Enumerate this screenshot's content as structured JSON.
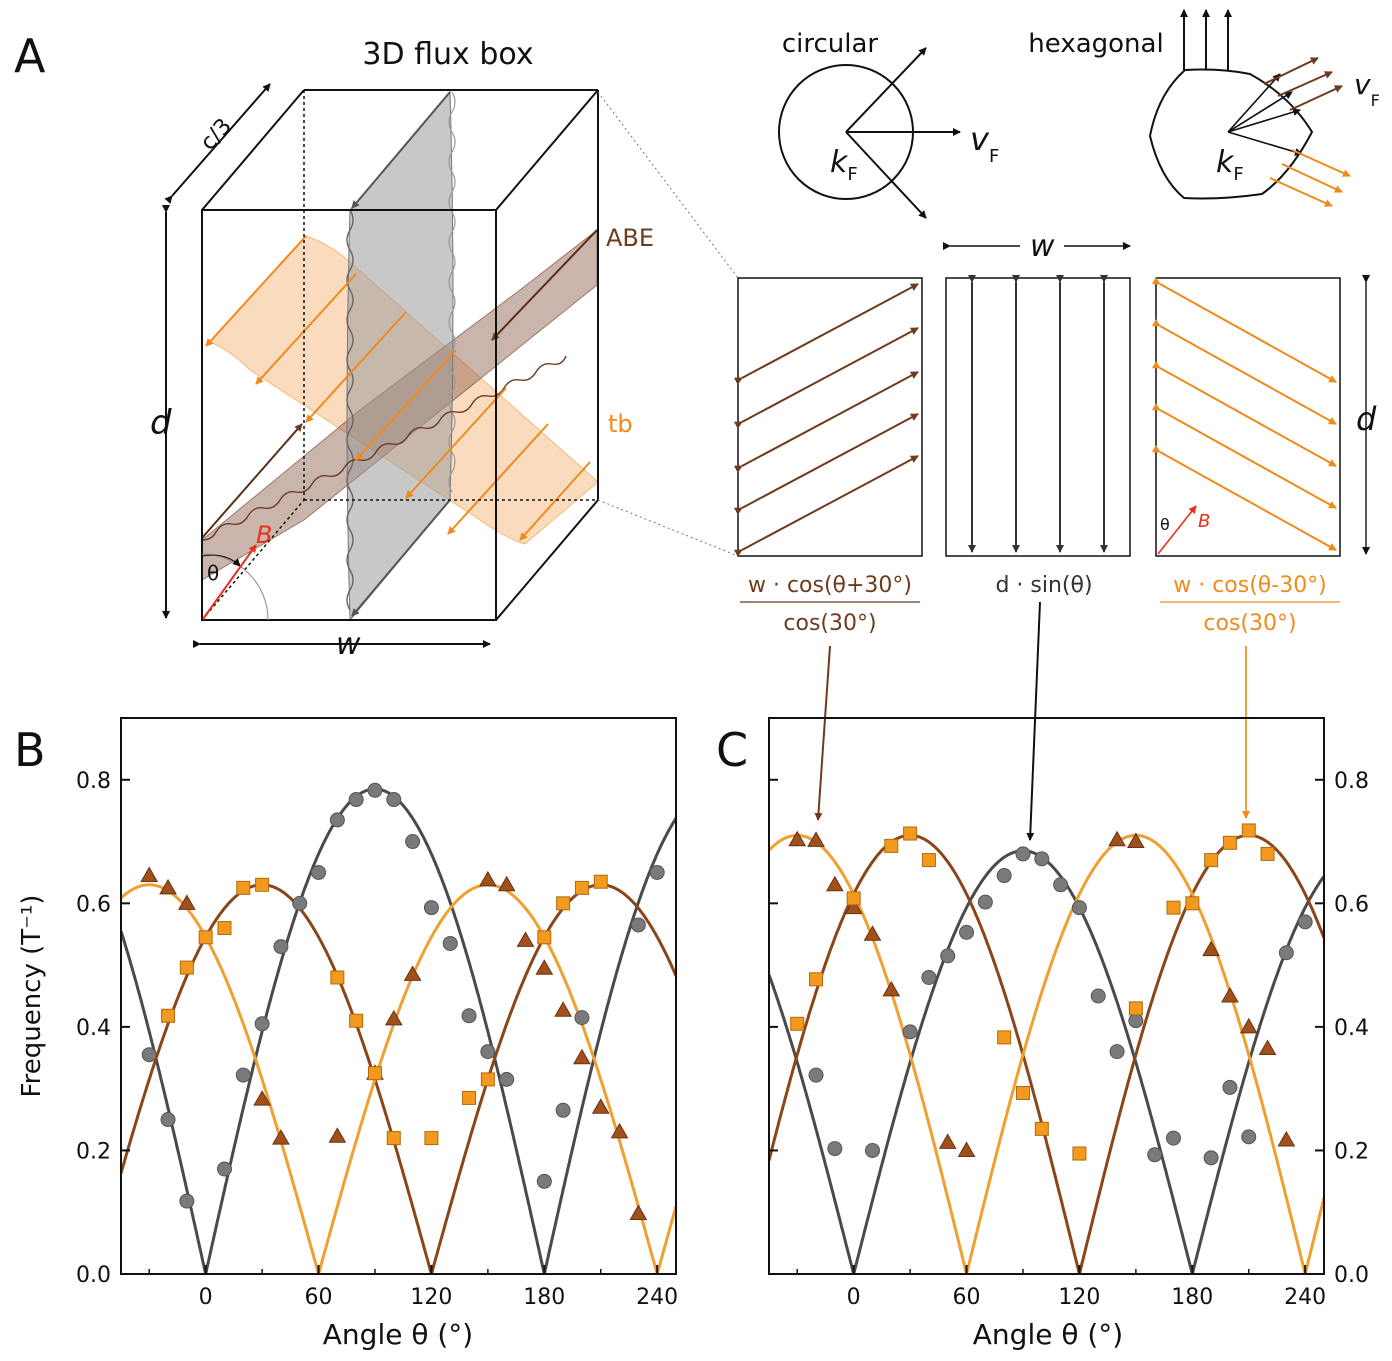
{
  "panels": {
    "a": "A",
    "b": "B",
    "c": "C"
  },
  "panel_a": {
    "title": "3D flux box",
    "label_c3": "c/3",
    "label_d": "d",
    "label_w": "w",
    "label_abe": "ABE",
    "label_tb": "tb",
    "label_B": "B",
    "label_theta": "θ",
    "circular_title": "circular",
    "hexagonal_title": "hexagonal",
    "kF": "k",
    "kF_sub": "F",
    "vF": "v",
    "vF_sub": "F",
    "formula_left_num": "w · cos(θ+30°)",
    "formula_left_den": "cos(30°)",
    "formula_mid": "d · sin(θ)",
    "formula_right_num": "w · cos(θ-30°)",
    "formula_right_den": "cos(30°)",
    "colors": {
      "abe": "#6e3b1f",
      "tb": "#f08a1c",
      "gray": "#4d4d4d",
      "red": "#e8321e"
    }
  },
  "chart_data": [
    {
      "type": "scatter",
      "panel": "B",
      "xlabel": "Angle θ (°)",
      "ylabel": "Frequency (T⁻¹)",
      "xlim": [
        -45,
        250
      ],
      "ylim": [
        0,
        0.9
      ],
      "xticks": [
        0,
        60,
        120,
        180,
        240
      ],
      "yticks": [
        0.0,
        0.2,
        0.4,
        0.6,
        0.8
      ],
      "series": [
        {
          "marker": "circle",
          "color": "#7a7a7a",
          "fit": {
            "kind": "abs_sin",
            "amplitude": 0.785,
            "phase": 0
          },
          "points": [
            [
              -30,
              0.355
            ],
            [
              -20,
              0.25
            ],
            [
              -10,
              0.118
            ],
            [
              10,
              0.17
            ],
            [
              20,
              0.322
            ],
            [
              30,
              0.405
            ],
            [
              40,
              0.53
            ],
            [
              50,
              0.6
            ],
            [
              60,
              0.65
            ],
            [
              70,
              0.735
            ],
            [
              80,
              0.768
            ],
            [
              90,
              0.783
            ],
            [
              100,
              0.768
            ],
            [
              110,
              0.7
            ],
            [
              120,
              0.593
            ],
            [
              130,
              0.535
            ],
            [
              140,
              0.418
            ],
            [
              150,
              0.36
            ],
            [
              160,
              0.315
            ],
            [
              180,
              0.15
            ],
            [
              190,
              0.265
            ],
            [
              200,
              0.415
            ],
            [
              230,
              0.565
            ],
            [
              240,
              0.65
            ]
          ]
        },
        {
          "marker": "triangle",
          "color": "#a0501a",
          "fit": {
            "kind": "cos",
            "amplitude": 0.63,
            "phase": 30
          },
          "points": [
            [
              -30,
              0.645
            ],
            [
              -20,
              0.625
            ],
            [
              -10,
              0.6
            ],
            [
              30,
              0.283
            ],
            [
              40,
              0.22
            ],
            [
              70,
              0.223
            ],
            [
              90,
              0.325
            ],
            [
              100,
              0.413
            ],
            [
              110,
              0.485
            ],
            [
              150,
              0.638
            ],
            [
              160,
              0.63
            ],
            [
              170,
              0.54
            ],
            [
              180,
              0.495
            ],
            [
              190,
              0.427
            ],
            [
              200,
              0.35
            ],
            [
              210,
              0.27
            ],
            [
              220,
              0.23
            ],
            [
              230,
              0.098
            ]
          ]
        },
        {
          "marker": "square",
          "color": "#f39a1e",
          "fit": {
            "kind": "cos",
            "amplitude": 0.63,
            "phase": -30
          },
          "points": [
            [
              -20,
              0.418
            ],
            [
              -10,
              0.496
            ],
            [
              0,
              0.545
            ],
            [
              10,
              0.56
            ],
            [
              20,
              0.625
            ],
            [
              30,
              0.63
            ],
            [
              70,
              0.48
            ],
            [
              80,
              0.41
            ],
            [
              90,
              0.325
            ],
            [
              100,
              0.22
            ],
            [
              120,
              0.22
            ],
            [
              140,
              0.285
            ],
            [
              150,
              0.315
            ],
            [
              180,
              0.545
            ],
            [
              190,
              0.6
            ],
            [
              200,
              0.625
            ],
            [
              210,
              0.635
            ]
          ]
        }
      ]
    },
    {
      "type": "scatter",
      "panel": "C",
      "xlabel": "Angle θ (°)",
      "ylabel": "",
      "xlim": [
        -45,
        250
      ],
      "ylim": [
        0,
        0.9
      ],
      "xticks": [
        0,
        60,
        120,
        180,
        240
      ],
      "yticks": [
        0.0,
        0.2,
        0.4,
        0.6,
        0.8
      ],
      "series": [
        {
          "marker": "circle",
          "color": "#7a7a7a",
          "fit": {
            "kind": "abs_sin",
            "amplitude": 0.685,
            "phase": 0
          },
          "points": [
            [
              -20,
              0.322
            ],
            [
              -10,
              0.203
            ],
            [
              10,
              0.2
            ],
            [
              30,
              0.392
            ],
            [
              40,
              0.48
            ],
            [
              50,
              0.515
            ],
            [
              60,
              0.553
            ],
            [
              70,
              0.602
            ],
            [
              80,
              0.645
            ],
            [
              90,
              0.68
            ],
            [
              100,
              0.672
            ],
            [
              110,
              0.63
            ],
            [
              120,
              0.593
            ],
            [
              130,
              0.45
            ],
            [
              140,
              0.36
            ],
            [
              150,
              0.41
            ],
            [
              160,
              0.193
            ],
            [
              170,
              0.22
            ],
            [
              190,
              0.188
            ],
            [
              200,
              0.302
            ],
            [
              210,
              0.222
            ],
            [
              230,
              0.52
            ],
            [
              240,
              0.57
            ]
          ]
        },
        {
          "marker": "triangle",
          "color": "#a0501a",
          "fit": {
            "kind": "cos",
            "amplitude": 0.71,
            "phase": 30
          },
          "points": [
            [
              -30,
              0.703
            ],
            [
              -20,
              0.702
            ],
            [
              -10,
              0.63
            ],
            [
              0,
              0.593
            ],
            [
              10,
              0.55
            ],
            [
              20,
              0.46
            ],
            [
              50,
              0.213
            ],
            [
              60,
              0.2
            ],
            [
              140,
              0.703
            ],
            [
              150,
              0.7
            ],
            [
              190,
              0.525
            ],
            [
              200,
              0.45
            ],
            [
              210,
              0.4
            ],
            [
              220,
              0.365
            ],
            [
              230,
              0.217
            ]
          ]
        },
        {
          "marker": "square",
          "color": "#f39a1e",
          "fit": {
            "kind": "cos",
            "amplitude": 0.71,
            "phase": -30
          },
          "points": [
            [
              -30,
              0.405
            ],
            [
              -20,
              0.477
            ],
            [
              0,
              0.608
            ],
            [
              20,
              0.693
            ],
            [
              30,
              0.713
            ],
            [
              40,
              0.67
            ],
            [
              80,
              0.383
            ],
            [
              90,
              0.293
            ],
            [
              100,
              0.235
            ],
            [
              120,
              0.195
            ],
            [
              150,
              0.43
            ],
            [
              170,
              0.593
            ],
            [
              180,
              0.6
            ],
            [
              190,
              0.67
            ],
            [
              200,
              0.698
            ],
            [
              210,
              0.718
            ],
            [
              220,
              0.68
            ]
          ]
        }
      ]
    }
  ]
}
